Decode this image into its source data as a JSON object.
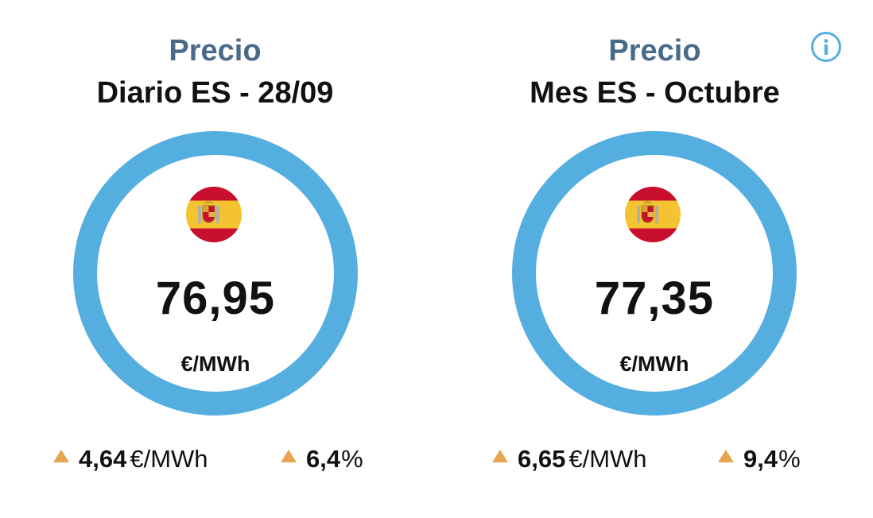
{
  "colors": {
    "title": "#4a6a8a",
    "ring": "#55aee0",
    "arrow_up": "#e7a451",
    "text": "#111111",
    "info": "#55aee0"
  },
  "info_icon": "info-circle-icon",
  "cards": [
    {
      "title": "Precio",
      "subtitle": "Diario ES - 28/09",
      "flag_icon": "spain-flag-icon",
      "value": "76,95",
      "unit": "€/MWh",
      "change_abs": {
        "trend": "up",
        "value": "4,64",
        "unit": "€/MWh"
      },
      "change_pct": {
        "trend": "up",
        "value": "6,4",
        "unit": "%"
      }
    },
    {
      "title": "Precio",
      "subtitle": "Mes ES - Octubre",
      "flag_icon": "spain-flag-icon",
      "value": "77,35",
      "unit": "€/MWh",
      "change_abs": {
        "trend": "up",
        "value": "6,65",
        "unit": "€/MWh"
      },
      "change_pct": {
        "trend": "up",
        "value": "9,4",
        "unit": "%"
      }
    }
  ]
}
